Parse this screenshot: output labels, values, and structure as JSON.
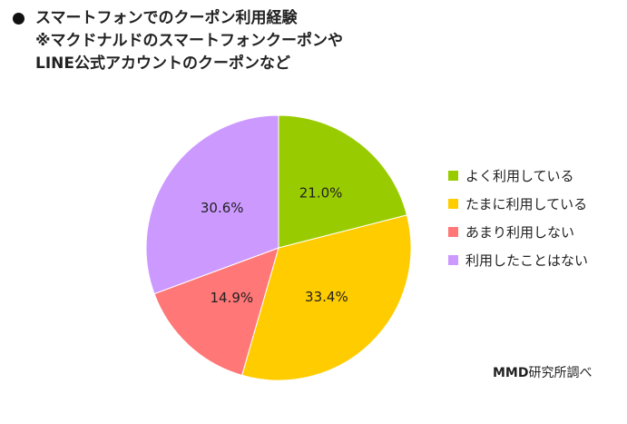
{
  "title": {
    "line1": "スマートフォンでのクーポン利用経験",
    "line2": "※マクドナルドのスマートフォンクーポンや",
    "line3": "LINE公式アカウントのクーポンなど"
  },
  "source": {
    "brand": "MMD",
    "text": "研究所調べ"
  },
  "chart_data": {
    "type": "pie",
    "title": "スマートフォンでのクーポン利用経験",
    "categories": [
      "よく利用している",
      "たまに利用している",
      "あまり利用しない",
      "利用したことはない"
    ],
    "values": [
      21.0,
      33.4,
      14.9,
      30.6
    ],
    "labels": [
      "21.0%",
      "33.4%",
      "14.9%",
      "30.6%"
    ],
    "colors": [
      "#99cc00",
      "#ffcc00",
      "#ff7777",
      "#cc99ff"
    ],
    "start": "12 o'clock",
    "direction": "clockwise",
    "legend_position": "right"
  }
}
